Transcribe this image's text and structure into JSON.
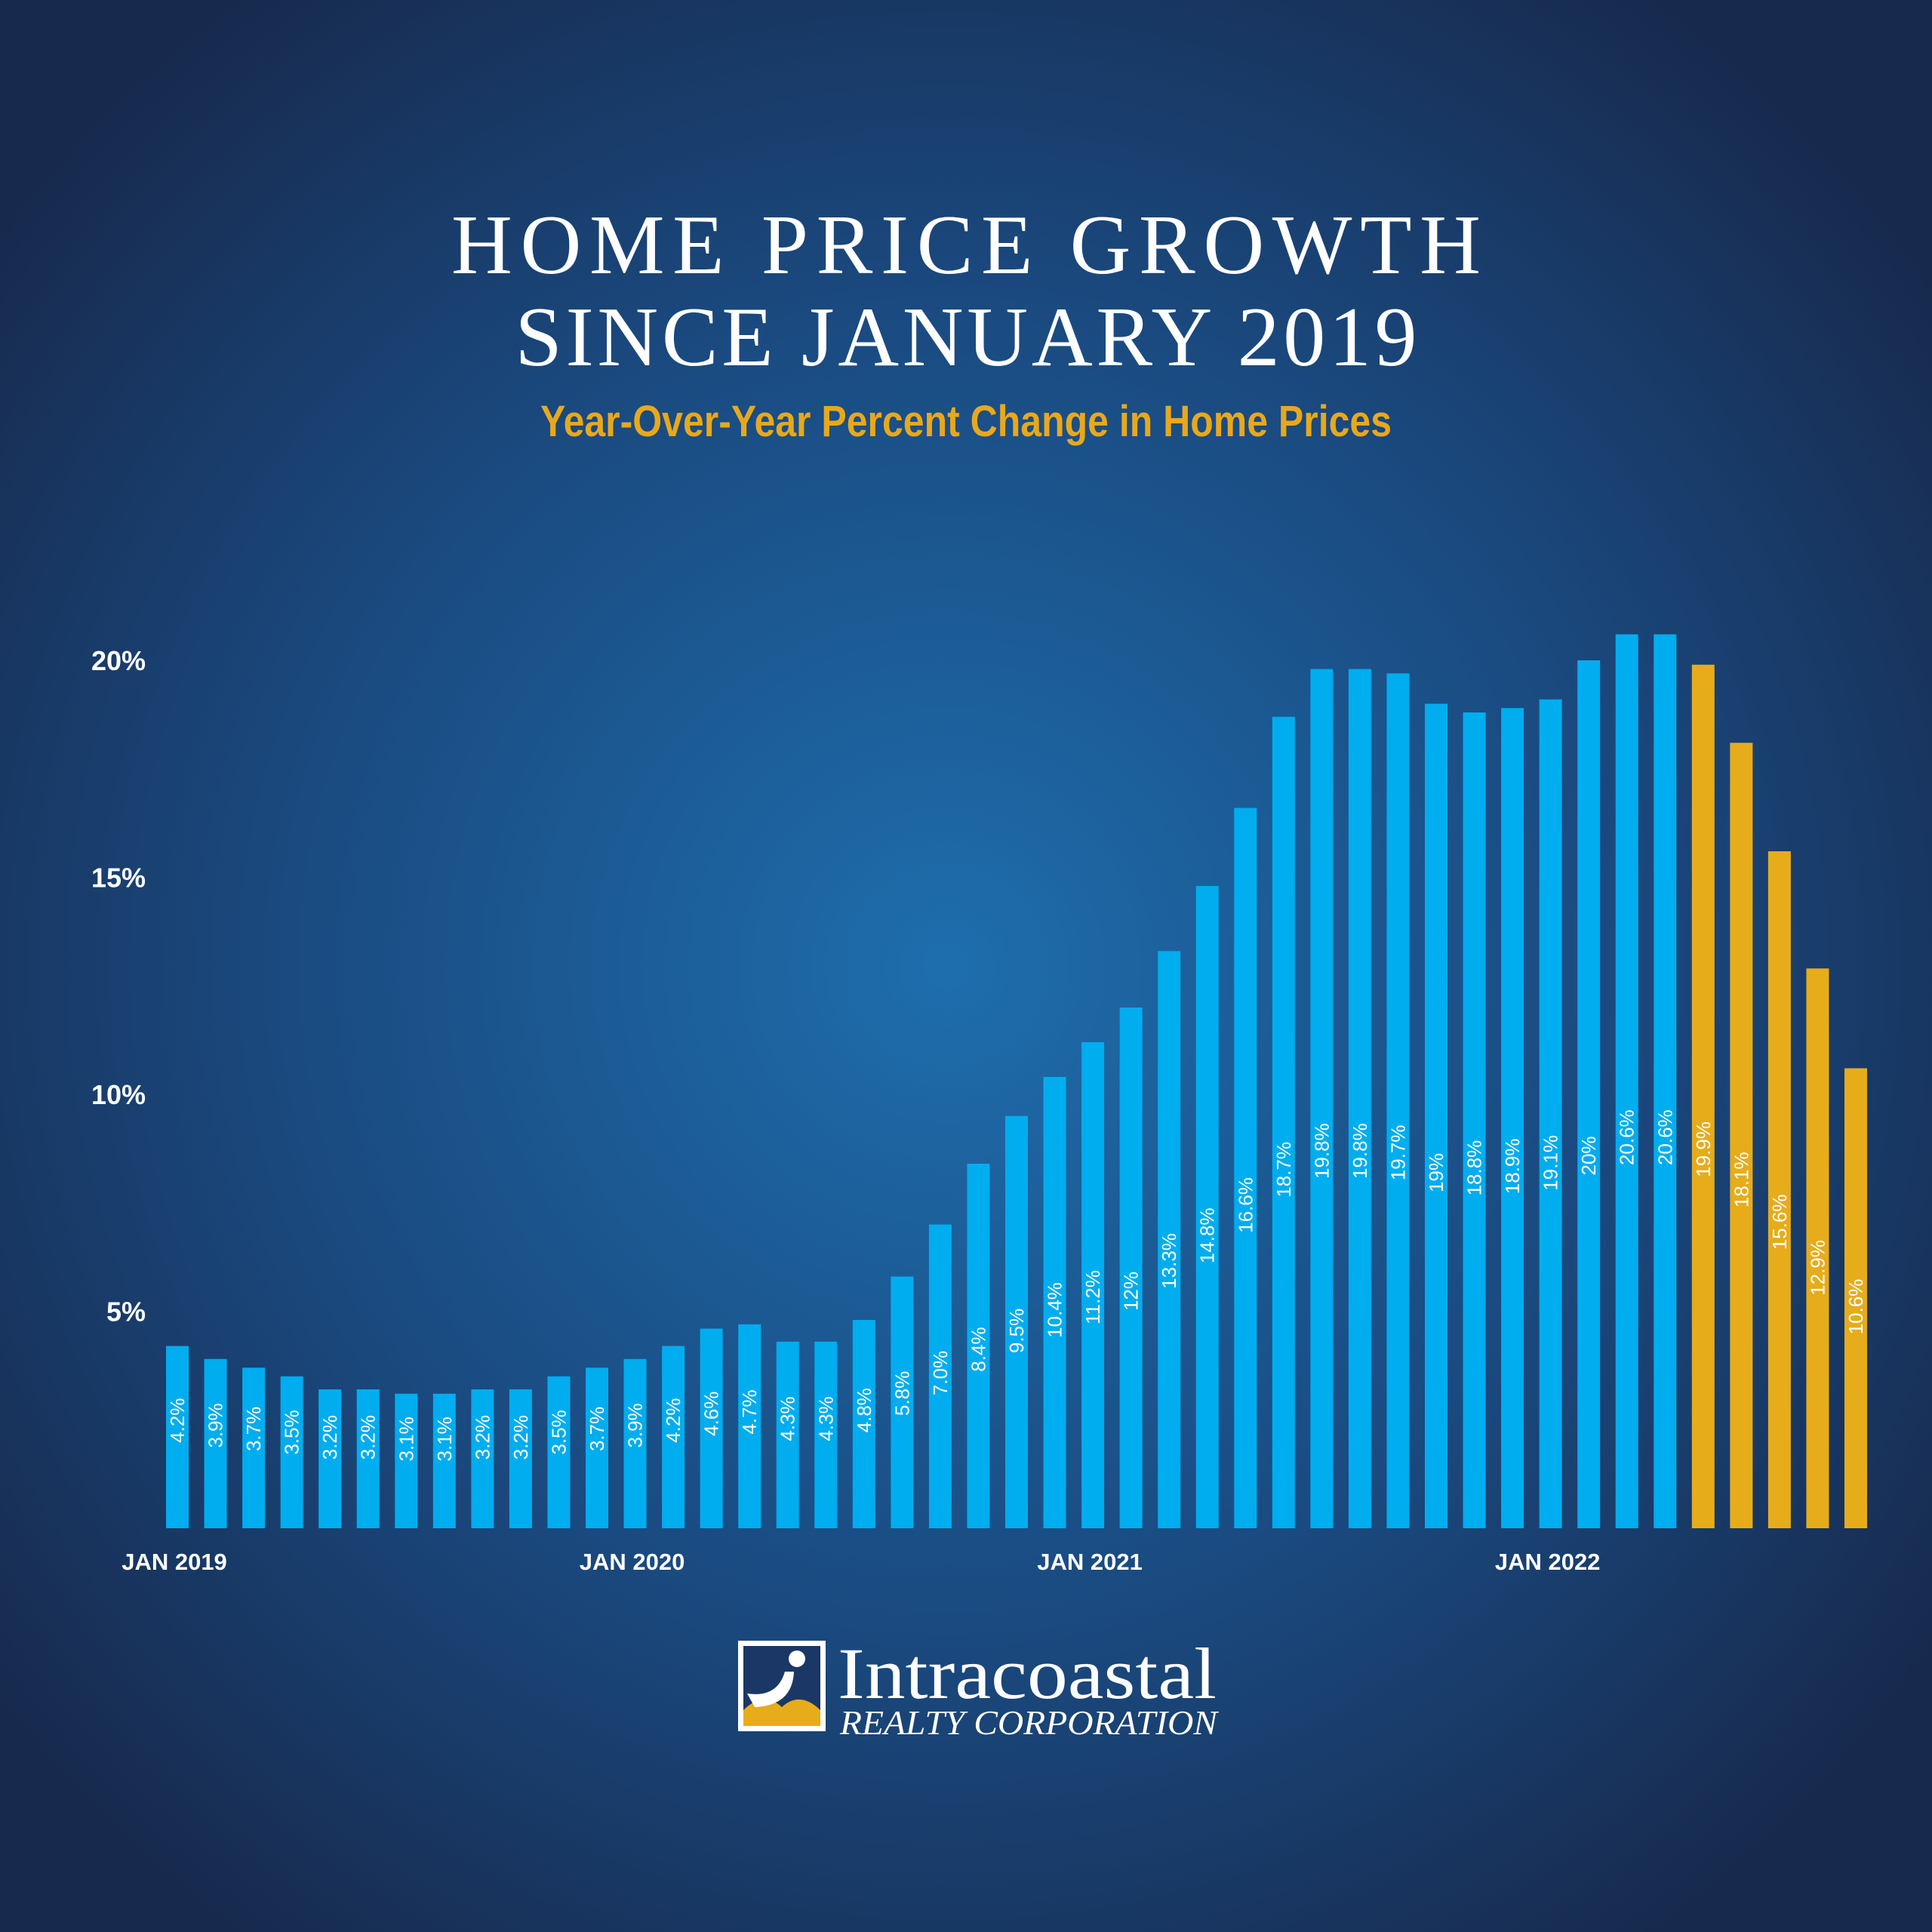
{
  "chart_data": {
    "type": "bar",
    "title": [
      "HOME PRICE GROWTH",
      "SINCE JANUARY 2019"
    ],
    "subtitle": "Year-Over-Year Percent Change in Home Prices",
    "categories": [
      "JAN 2019",
      null,
      null,
      null,
      null,
      null,
      null,
      null,
      null,
      null,
      null,
      null,
      "JAN 2020",
      null,
      null,
      null,
      null,
      null,
      null,
      null,
      null,
      null,
      null,
      null,
      "JAN 2021",
      null,
      null,
      null,
      null,
      null,
      null,
      null,
      null,
      null,
      null,
      null,
      "JAN 2022",
      null,
      null,
      null,
      null,
      null,
      null,
      null,
      null
    ],
    "values": [
      4.2,
      3.9,
      3.7,
      3.5,
      3.2,
      3.2,
      3.1,
      3.1,
      3.2,
      3.2,
      3.5,
      3.7,
      3.9,
      4.2,
      4.6,
      4.7,
      4.3,
      4.3,
      4.8,
      5.8,
      7.0,
      8.4,
      9.5,
      10.4,
      11.2,
      12,
      13.3,
      14.8,
      16.6,
      18.7,
      19.8,
      19.8,
      19.7,
      19,
      18.8,
      18.9,
      19.1,
      20,
      20.6,
      20.6,
      19.9,
      18.1,
      15.6,
      12.9,
      10.6
    ],
    "value_labels": [
      "4.2%",
      "3.9%",
      "3.7%",
      "3.5%",
      "3.2%",
      "3.2%",
      "3.1%",
      "3.1%",
      "3.2%",
      "3.2%",
      "3.5%",
      "3.7%",
      "3.9%",
      "4.2%",
      "4.6%",
      "4.7%",
      "4.3%",
      "4.3%",
      "4.8%",
      "5.8%",
      "7.0%",
      "8.4%",
      "9.5%",
      "10.4%",
      "11.2%",
      "12%",
      "13.3%",
      "14.8%",
      "16.6%",
      "18.7%",
      "19.8%",
      "19.8%",
      "19.7%",
      "19%",
      "18.8%",
      "18.9%",
      "19.1%",
      "20%",
      "20.6%",
      "20.6%",
      "19.9%",
      "18.1%",
      "15.6%",
      "12.9%",
      "10.6%"
    ],
    "colors": [
      "#00adef",
      "#00adef",
      "#00adef",
      "#00adef",
      "#00adef",
      "#00adef",
      "#00adef",
      "#00adef",
      "#00adef",
      "#00adef",
      "#00adef",
      "#00adef",
      "#00adef",
      "#00adef",
      "#00adef",
      "#00adef",
      "#00adef",
      "#00adef",
      "#00adef",
      "#00adef",
      "#00adef",
      "#00adef",
      "#00adef",
      "#00adef",
      "#00adef",
      "#00adef",
      "#00adef",
      "#00adef",
      "#00adef",
      "#00adef",
      "#00adef",
      "#00adef",
      "#00adef",
      "#00adef",
      "#00adef",
      "#00adef",
      "#00adef",
      "#00adef",
      "#00adef",
      "#00adef",
      "#e6ac1a",
      "#e6ac1a",
      "#e6ac1a",
      "#e6ac1a",
      "#e6ac1a"
    ],
    "ylim": [
      0,
      22
    ],
    "yticks": [
      {
        "value": 5,
        "label": "5%"
      },
      {
        "value": 10,
        "label": "10%"
      },
      {
        "value": 15,
        "label": "15%"
      },
      {
        "value": 20,
        "label": "20%"
      }
    ],
    "grid": false
  },
  "logo": {
    "name": "Intracoastal",
    "tagline": "REALTY CORPORATION"
  }
}
